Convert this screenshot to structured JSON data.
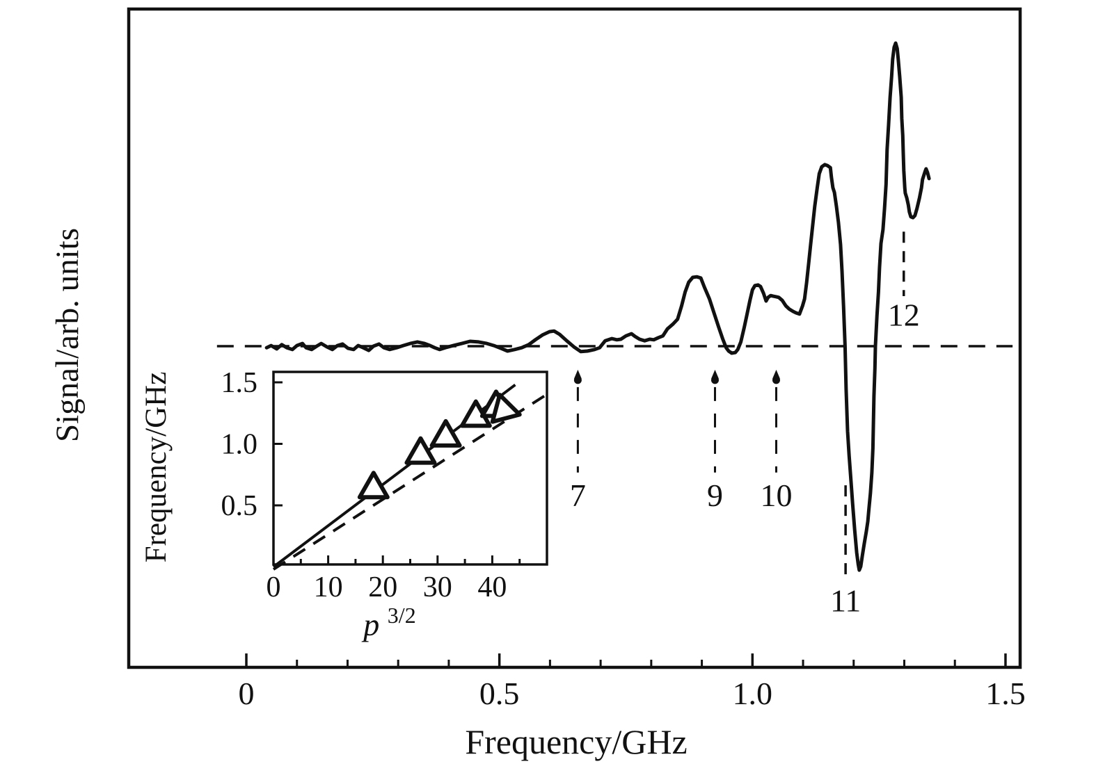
{
  "figure": {
    "background": "#ffffff",
    "ink": "#111111"
  },
  "chart_data": [
    {
      "type": "line",
      "title": "",
      "xlabel": "Frequency/GHz",
      "ylabel": "Signal/arb. units",
      "xlim": [
        -0.23,
        1.53
      ],
      "ylim": [
        -1.06,
        1.11
      ],
      "grid": false,
      "legend": "none",
      "xticks_major": [
        0,
        0.5,
        1.0,
        1.5
      ],
      "xtick_labels": [
        "0",
        "0.5",
        "1.0",
        "1.5"
      ],
      "xticks_minor_step": 0.1,
      "baseline": {
        "v": 0,
        "x1": -0.058,
        "x2": 1.514,
        "style": "dashed"
      },
      "arrow_style": {
        "dot_v": -0.112,
        "stem_top_v": -0.135,
        "stem_bottom_v": -0.417,
        "label_v": -0.491
      },
      "annotations": [
        {
          "type": "arrow",
          "label": "7",
          "x": 0.655
        },
        {
          "type": "arrow",
          "label": "9",
          "x": 0.926
        },
        {
          "type": "arrow",
          "label": "10",
          "x": 1.047
        },
        {
          "type": "vline",
          "label": "11",
          "x": 1.184,
          "v1": -0.459,
          "v2": -0.766,
          "label_v": -0.838
        },
        {
          "type": "vline",
          "label": "12",
          "x": 1.299,
          "v1": 0.378,
          "v2": 0.165,
          "label_v": 0.104
        }
      ],
      "series": [
        {
          "name": "signal",
          "points": [
            [
              0.04,
              -0.005
            ],
            [
              0.049,
              0.002
            ],
            [
              0.06,
              -0.009
            ],
            [
              0.07,
              0.005
            ],
            [
              0.08,
              -0.005
            ],
            [
              0.091,
              -0.011
            ],
            [
              0.1,
              0.002
            ],
            [
              0.111,
              0.009
            ],
            [
              0.118,
              -0.005
            ],
            [
              0.129,
              -0.011
            ],
            [
              0.139,
              0.0
            ],
            [
              0.148,
              0.009
            ],
            [
              0.159,
              -0.002
            ],
            [
              0.17,
              -0.011
            ],
            [
              0.18,
              0.002
            ],
            [
              0.19,
              0.007
            ],
            [
              0.201,
              -0.007
            ],
            [
              0.212,
              -0.011
            ],
            [
              0.221,
              0.002
            ],
            [
              0.231,
              -0.005
            ],
            [
              0.242,
              -0.014
            ],
            [
              0.251,
              0.0
            ],
            [
              0.262,
              0.007
            ],
            [
              0.272,
              -0.005
            ],
            [
              0.283,
              -0.011
            ],
            [
              0.297,
              -0.005
            ],
            [
              0.31,
              0.002
            ],
            [
              0.324,
              0.009
            ],
            [
              0.338,
              0.014
            ],
            [
              0.352,
              0.009
            ],
            [
              0.363,
              0.002
            ],
            [
              0.372,
              -0.005
            ],
            [
              0.382,
              -0.011
            ],
            [
              0.393,
              -0.005
            ],
            [
              0.409,
              0.002
            ],
            [
              0.426,
              0.009
            ],
            [
              0.442,
              0.016
            ],
            [
              0.459,
              0.014
            ],
            [
              0.475,
              0.009
            ],
            [
              0.489,
              0.002
            ],
            [
              0.503,
              -0.007
            ],
            [
              0.516,
              -0.016
            ],
            [
              0.53,
              -0.011
            ],
            [
              0.544,
              -0.005
            ],
            [
              0.558,
              0.005
            ],
            [
              0.571,
              0.021
            ],
            [
              0.585,
              0.037
            ],
            [
              0.599,
              0.048
            ],
            [
              0.608,
              0.05
            ],
            [
              0.619,
              0.039
            ],
            [
              0.633,
              0.018
            ],
            [
              0.647,
              -0.002
            ],
            [
              0.661,
              -0.018
            ],
            [
              0.674,
              -0.016
            ],
            [
              0.688,
              -0.011
            ],
            [
              0.698,
              -0.005
            ],
            [
              0.709,
              0.018
            ],
            [
              0.722,
              0.025
            ],
            [
              0.732,
              0.021
            ],
            [
              0.74,
              0.023
            ],
            [
              0.75,
              0.034
            ],
            [
              0.761,
              0.041
            ],
            [
              0.768,
              0.032
            ],
            [
              0.777,
              0.023
            ],
            [
              0.787,
              0.018
            ],
            [
              0.797,
              0.023
            ],
            [
              0.805,
              0.021
            ],
            [
              0.814,
              0.028
            ],
            [
              0.823,
              0.034
            ],
            [
              0.832,
              0.057
            ],
            [
              0.843,
              0.073
            ],
            [
              0.852,
              0.089
            ],
            [
              0.86,
              0.133
            ],
            [
              0.867,
              0.179
            ],
            [
              0.874,
              0.211
            ],
            [
              0.882,
              0.227
            ],
            [
              0.89,
              0.229
            ],
            [
              0.898,
              0.225
            ],
            [
              0.905,
              0.195
            ],
            [
              0.915,
              0.156
            ],
            [
              0.924,
              0.11
            ],
            [
              0.933,
              0.064
            ],
            [
              0.941,
              0.025
            ],
            [
              0.948,
              -0.005
            ],
            [
              0.953,
              -0.016
            ],
            [
              0.959,
              -0.023
            ],
            [
              0.966,
              -0.021
            ],
            [
              0.971,
              -0.011
            ],
            [
              0.977,
              0.014
            ],
            [
              0.984,
              0.064
            ],
            [
              0.989,
              0.103
            ],
            [
              0.995,
              0.151
            ],
            [
              1.0,
              0.186
            ],
            [
              1.005,
              0.2
            ],
            [
              1.011,
              0.202
            ],
            [
              1.016,
              0.197
            ],
            [
              1.022,
              0.174
            ],
            [
              1.027,
              0.149
            ],
            [
              1.031,
              0.161
            ],
            [
              1.036,
              0.167
            ],
            [
              1.041,
              0.165
            ],
            [
              1.047,
              0.163
            ],
            [
              1.052,
              0.161
            ],
            [
              1.059,
              0.151
            ],
            [
              1.066,
              0.133
            ],
            [
              1.073,
              0.122
            ],
            [
              1.08,
              0.115
            ],
            [
              1.086,
              0.11
            ],
            [
              1.093,
              0.106
            ],
            [
              1.099,
              0.133
            ],
            [
              1.103,
              0.156
            ],
            [
              1.107,
              0.209
            ],
            [
              1.111,
              0.271
            ],
            [
              1.115,
              0.335
            ],
            [
              1.119,
              0.397
            ],
            [
              1.123,
              0.461
            ],
            [
              1.128,
              0.523
            ],
            [
              1.132,
              0.569
            ],
            [
              1.137,
              0.592
            ],
            [
              1.143,
              0.599
            ],
            [
              1.148,
              0.596
            ],
            [
              1.154,
              0.589
            ],
            [
              1.156,
              0.557
            ],
            [
              1.159,
              0.523
            ],
            [
              1.162,
              0.507
            ],
            [
              1.166,
              0.461
            ],
            [
              1.17,
              0.408
            ],
            [
              1.174,
              0.335
            ],
            [
              1.177,
              0.248
            ],
            [
              1.18,
              0.133
            ],
            [
              1.183,
              0.0
            ],
            [
              1.185,
              -0.142
            ],
            [
              1.188,
              -0.28
            ],
            [
              1.191,
              -0.36
            ],
            [
              1.194,
              -0.429
            ],
            [
              1.198,
              -0.521
            ],
            [
              1.202,
              -0.606
            ],
            [
              1.206,
              -0.681
            ],
            [
              1.209,
              -0.72
            ],
            [
              1.211,
              -0.739
            ],
            [
              1.214,
              -0.727
            ],
            [
              1.217,
              -0.693
            ],
            [
              1.221,
              -0.651
            ],
            [
              1.225,
              -0.612
            ],
            [
              1.228,
              -0.578
            ],
            [
              1.23,
              -0.539
            ],
            [
              1.233,
              -0.486
            ],
            [
              1.236,
              -0.417
            ],
            [
              1.238,
              -0.337
            ],
            [
              1.239,
              -0.257
            ],
            [
              1.24,
              -0.165
            ],
            [
              1.242,
              -0.073
            ],
            [
              1.243,
              0.0
            ],
            [
              1.246,
              0.099
            ],
            [
              1.249,
              0.179
            ],
            [
              1.251,
              0.259
            ],
            [
              1.254,
              0.339
            ],
            [
              1.258,
              0.385
            ],
            [
              1.261,
              0.454
            ],
            [
              1.264,
              0.534
            ],
            [
              1.266,
              0.649
            ],
            [
              1.269,
              0.729
            ],
            [
              1.272,
              0.821
            ],
            [
              1.275,
              0.89
            ],
            [
              1.277,
              0.947
            ],
            [
              1.28,
              0.986
            ],
            [
              1.283,
              1.0
            ],
            [
              1.286,
              0.982
            ],
            [
              1.288,
              0.947
            ],
            [
              1.291,
              0.89
            ],
            [
              1.294,
              0.821
            ],
            [
              1.295,
              0.752
            ],
            [
              1.297,
              0.695
            ],
            [
              1.298,
              0.638
            ],
            [
              1.299,
              0.58
            ],
            [
              1.301,
              0.523
            ],
            [
              1.302,
              0.505
            ],
            [
              1.305,
              0.489
            ],
            [
              1.308,
              0.466
            ],
            [
              1.31,
              0.443
            ],
            [
              1.313,
              0.427
            ],
            [
              1.317,
              0.424
            ],
            [
              1.321,
              0.431
            ],
            [
              1.325,
              0.454
            ],
            [
              1.33,
              0.489
            ],
            [
              1.334,
              0.523
            ],
            [
              1.336,
              0.55
            ],
            [
              1.341,
              0.576
            ],
            [
              1.343,
              0.585
            ],
            [
              1.346,
              0.573
            ],
            [
              1.349,
              0.553
            ]
          ]
        }
      ]
    },
    {
      "type": "scatter",
      "title": "",
      "xlabel_base": "p",
      "xlabel_sup": "3/2",
      "ylabel": "Frequency/GHz",
      "xlim": [
        0,
        50
      ],
      "ylim": [
        0,
        1.585
      ],
      "grid": false,
      "xticks_major": [
        0,
        10,
        20,
        30,
        40
      ],
      "xtick_labels": [
        "0",
        "10",
        "20",
        "30",
        "40"
      ],
      "xticks_minor": [
        5,
        15,
        25,
        35,
        45
      ],
      "yticks": [
        0.5,
        1.0,
        1.5
      ],
      "ytick_labels": [
        "0.5",
        "1.0",
        "1.5"
      ],
      "marker": "triangle-open",
      "points": [
        {
          "x": 18.3,
          "y": 0.64,
          "rot": 0
        },
        {
          "x": 26.9,
          "y": 0.92,
          "rot": 0
        },
        {
          "x": 31.5,
          "y": 1.06,
          "rot": 0
        },
        {
          "x": 37.0,
          "y": 1.22,
          "rot": 0
        },
        {
          "x": 40.7,
          "y": 1.3,
          "rot": 0
        },
        {
          "x": 42.3,
          "y": 1.27,
          "rot": 105
        }
      ],
      "fit_line_solid": {
        "x1": 0,
        "y1": 0,
        "x2": 44.2,
        "y2": 1.48
      },
      "fit_line_dashed": {
        "x1": 0,
        "y1": -0.02,
        "x2": 49.9,
        "y2": 1.4
      }
    }
  ]
}
